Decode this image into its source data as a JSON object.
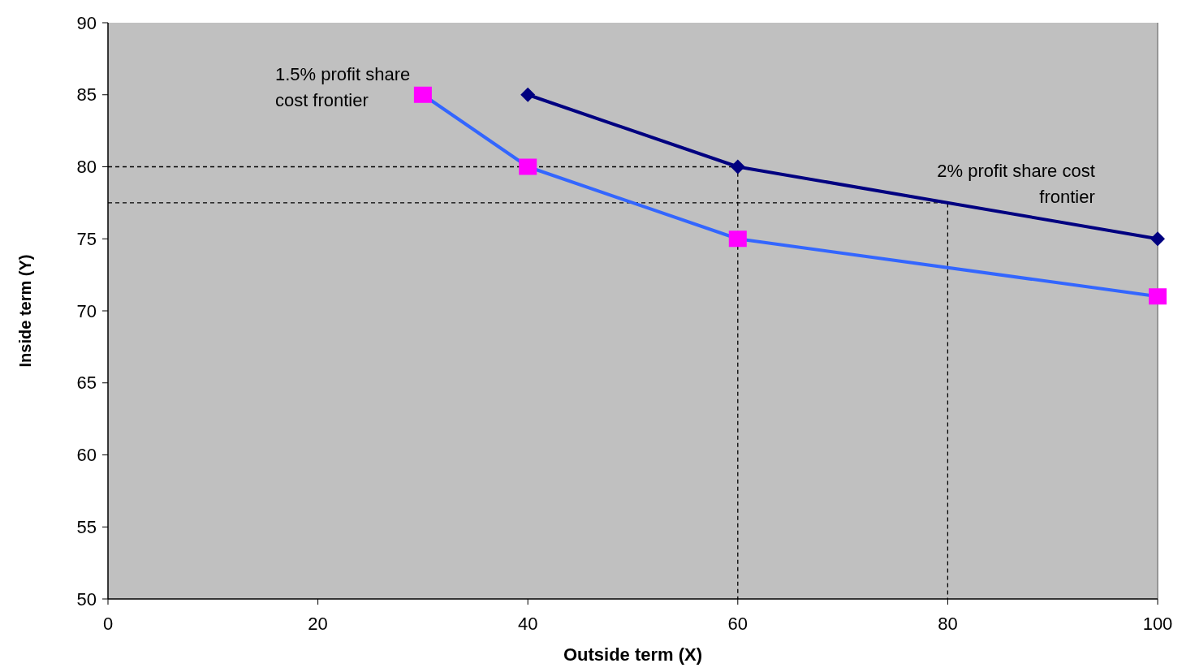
{
  "chart_data": {
    "type": "line",
    "xlabel": "Outside term (X)",
    "ylabel": "Inside term (Y)",
    "xlim": [
      0,
      100
    ],
    "xticks": [
      0,
      20,
      40,
      60,
      80,
      100
    ],
    "ylim": [
      50,
      90
    ],
    "yticks": [
      50,
      55,
      60,
      65,
      70,
      75,
      80,
      85,
      90
    ],
    "series": [
      {
        "name": "2% profit share cost frontier",
        "color": "#000080",
        "marker": "diamond",
        "line_style": "solid",
        "x": [
          40,
          60,
          100
        ],
        "values": [
          85,
          80,
          75
        ]
      },
      {
        "name": "1.5% profit share cost frontier",
        "color": "#3366ff",
        "colors": [
          "#ff00ff",
          "#ff00ff",
          "#ff00ff",
          "#ff00ff"
        ],
        "marker": "square",
        "line_style": "solid",
        "x": [
          30,
          40,
          60,
          100
        ],
        "values": [
          85,
          80,
          75,
          71
        ]
      },
      {
        "color": "#000000",
        "marker": "none",
        "line_style": "dashed",
        "x": [
          0,
          60,
          60
        ],
        "values": [
          80,
          80,
          50
        ]
      },
      {
        "color": "#000000",
        "marker": "none",
        "line_style": "dashed",
        "x": [
          0,
          80,
          80
        ],
        "values": [
          77.5,
          77.5,
          50
        ]
      }
    ]
  }
}
